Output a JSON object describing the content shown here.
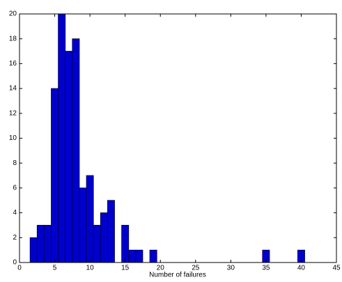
{
  "chart_data": {
    "type": "histogram",
    "xlabel": "Number of failures",
    "bins": [
      1.5,
      2.5,
      3.5,
      4.5,
      5.5,
      6.5,
      7.5,
      8.5,
      9.5,
      10.5,
      11.5,
      12.5,
      13.5,
      14.5,
      15.5,
      16.5,
      17.5,
      18.5,
      19.5,
      20.5,
      21.5,
      22.5,
      23.5,
      24.5,
      25.5,
      26.5,
      27.5,
      28.5,
      29.5,
      30.5,
      31.5,
      32.5,
      33.5,
      34.5,
      35.5,
      36.5,
      37.5,
      38.5,
      39.5,
      40.5
    ],
    "values": [
      2,
      3,
      3,
      14,
      20,
      17,
      18,
      6,
      7,
      3,
      4,
      5,
      0,
      3,
      1,
      1,
      0,
      1,
      0,
      0,
      0,
      0,
      0,
      0,
      0,
      0,
      0,
      0,
      0,
      0,
      0,
      0,
      0,
      1,
      0,
      0,
      0,
      0,
      1
    ],
    "color": "#0000cc",
    "xlim": [
      0,
      45
    ],
    "xticks": [
      0,
      5,
      10,
      15,
      20,
      25,
      30,
      35,
      40,
      45
    ],
    "ylim": [
      0,
      20
    ],
    "yticks": [
      0,
      2,
      4,
      6,
      8,
      10,
      12,
      14,
      16,
      18,
      20
    ]
  }
}
